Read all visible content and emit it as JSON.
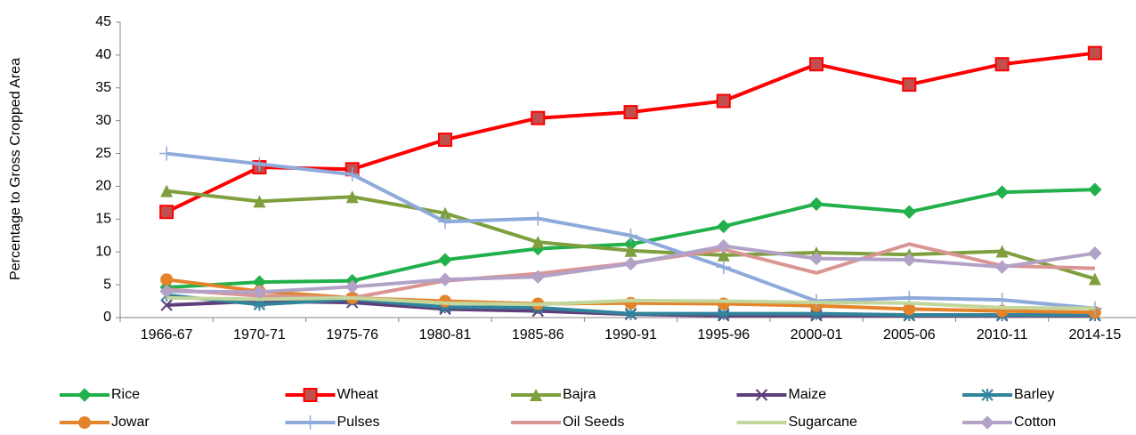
{
  "chart_data": {
    "type": "line",
    "y_label": "Percentage to Gross Cropped Area",
    "categories": [
      "1966-67",
      "1970-71",
      "1975-76",
      "1980-81",
      "1985-86",
      "1990-91",
      "1995-96",
      "2000-01",
      "2005-06",
      "2010-11",
      "2014-15"
    ],
    "ylim": [
      0,
      45
    ],
    "yticks": [
      0,
      5,
      10,
      15,
      20,
      25,
      30,
      35,
      40,
      45
    ],
    "grid": false,
    "legend": "bottom",
    "series": [
      {
        "name": "Rice",
        "color": "#22b04b",
        "marker": "diamond",
        "values": [
          4.6,
          5.4,
          5.6,
          8.8,
          10.5,
          11.2,
          13.9,
          17.3,
          16.1,
          19.1,
          19.5
        ]
      },
      {
        "name": "Wheat",
        "color": "#ff0000",
        "marker": "square",
        "values": [
          16.1,
          22.9,
          22.6,
          27.1,
          30.4,
          31.3,
          33.0,
          38.6,
          35.5,
          38.6,
          40.3
        ]
      },
      {
        "name": "Bajra",
        "color": "#7f9f3f",
        "marker": "triangle",
        "values": [
          19.3,
          17.7,
          18.4,
          15.9,
          11.5,
          10.2,
          9.5,
          9.9,
          9.6,
          10.1,
          5.9
        ]
      },
      {
        "name": "Maize",
        "color": "#5f3d7a",
        "marker": "x",
        "values": [
          1.9,
          2.5,
          2.3,
          1.3,
          1.0,
          0.5,
          0.3,
          0.3,
          0.3,
          0.3,
          0.3
        ]
      },
      {
        "name": "Barley",
        "color": "#31849b",
        "marker": "asterisk",
        "values": [
          3.4,
          2.0,
          2.8,
          1.6,
          1.5,
          0.6,
          0.6,
          0.6,
          0.4,
          0.4,
          0.4
        ]
      },
      {
        "name": "Jowar",
        "color": "#e5832a",
        "marker": "circle",
        "values": [
          5.8,
          4.0,
          3.0,
          2.5,
          2.1,
          2.2,
          2.1,
          1.8,
          1.3,
          1.0,
          0.8
        ]
      },
      {
        "name": "Pulses",
        "color": "#8eaadb",
        "marker": "plus",
        "values": [
          25.0,
          23.4,
          21.8,
          14.6,
          15.1,
          12.5,
          7.7,
          2.5,
          3.0,
          2.7,
          1.4
        ]
      },
      {
        "name": "Oil Seeds",
        "color": "#d99594",
        "marker": "none",
        "values": [
          4.3,
          3.3,
          3.0,
          5.6,
          6.7,
          8.3,
          10.4,
          6.8,
          11.2,
          7.9,
          7.5
        ]
      },
      {
        "name": "Sugarcane",
        "color": "#c3d69b",
        "marker": "none",
        "values": [
          3.0,
          2.8,
          3.0,
          2.2,
          2.0,
          2.6,
          2.5,
          2.3,
          2.2,
          1.5,
          1.4
        ]
      },
      {
        "name": "Cotton",
        "color": "#b3a2c7",
        "marker": "diamond",
        "values": [
          4.0,
          3.9,
          4.7,
          5.8,
          6.2,
          8.2,
          10.9,
          9.0,
          8.8,
          7.7,
          9.8
        ]
      }
    ]
  }
}
